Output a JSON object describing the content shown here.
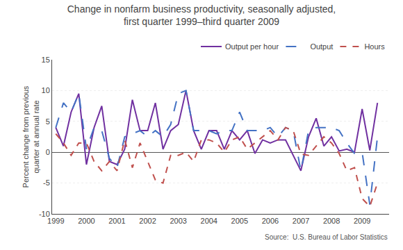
{
  "chart_data": {
    "type": "line",
    "title": "Change in nonfarm business productivity, seasonally adjusted,\nfirst quarter 1999–third quarter 2009",
    "y_label": "Percent change from previous\nquarter at annual rate",
    "annotations": [
      "Source:  U.S. Bureau of Labor Statistics"
    ],
    "x": [
      1999.0,
      1999.25,
      1999.5,
      1999.75,
      2000.0,
      2000.25,
      2000.5,
      2000.75,
      2001.0,
      2001.25,
      2001.5,
      2001.75,
      2002.0,
      2002.25,
      2002.5,
      2002.75,
      2003.0,
      2003.25,
      2003.5,
      2003.75,
      2004.0,
      2004.25,
      2004.5,
      2004.75,
      2005.0,
      2005.25,
      2005.5,
      2005.75,
      2006.0,
      2006.25,
      2006.5,
      2006.75,
      2007.0,
      2007.25,
      2007.5,
      2007.75,
      2008.0,
      2008.25,
      2008.5,
      2008.75,
      2009.0,
      2009.25,
      2009.5
    ],
    "series": [
      {
        "name": "Output per hour",
        "color": "#7030A0",
        "line_style": "solid",
        "values": [
          4.0,
          1.0,
          6.5,
          9.5,
          -2.0,
          4.0,
          7.5,
          -1.5,
          -2.0,
          0.5,
          8.5,
          3.5,
          3.5,
          8.0,
          0.5,
          3.5,
          4.5,
          10.0,
          3.5,
          0.5,
          3.5,
          3.5,
          0.5,
          3.5,
          2.0,
          3.5,
          -0.2,
          2.0,
          1.5,
          2.0,
          2.0,
          -0.5,
          -3.0,
          2.5,
          5.5,
          1.0,
          2.5,
          0.2,
          0.5,
          0.0,
          7.0,
          0.3,
          8.0
        ]
      },
      {
        "name": "Output",
        "color": "#4472C4",
        "line_style": "longdash",
        "values": [
          4.0,
          8.0,
          6.5,
          9.5,
          0.5,
          4.0,
          3.5,
          -1.0,
          -2.5,
          2.5,
          3.0,
          3.5,
          2.5,
          3.5,
          2.5,
          4.5,
          9.5,
          10.0,
          3.5,
          3.5,
          3.5,
          3.0,
          3.5,
          3.5,
          6.5,
          3.5,
          3.5,
          3.5,
          4.0,
          2.5,
          4.0,
          3.5,
          -3.0,
          3.5,
          4.0,
          4.0,
          4.0,
          3.5,
          1.5,
          -0.2,
          0.0,
          -8.5,
          2.5
        ]
      },
      {
        "name": "Hours",
        "color": "#C0504D",
        "line_style": "dash",
        "values": [
          3.0,
          1.5,
          -0.5,
          1.5,
          1.5,
          -1.5,
          -3.0,
          -1.5,
          -3.0,
          2.0,
          -2.5,
          1.5,
          -1.5,
          -4.5,
          -5.0,
          -0.5,
          -0.5,
          0.0,
          -1.5,
          2.0,
          2.0,
          1.5,
          0.0,
          2.0,
          2.5,
          0.5,
          1.5,
          2.5,
          3.5,
          2.0,
          4.0,
          3.5,
          -0.3,
          -0.5,
          1.0,
          2.5,
          1.5,
          -0.2,
          -3.0,
          -2.5,
          -7.5,
          -8.8,
          -5.0
        ]
      }
    ],
    "xlim": [
      1998.88,
      2009.88
    ],
    "ylim": [
      -10,
      15
    ],
    "xticks": [
      1999,
      2000,
      2001,
      2002,
      2003,
      2004,
      2005,
      2006,
      2007,
      2008,
      2009
    ],
    "yticks": [
      -10,
      -5,
      0,
      5,
      10,
      15
    ],
    "grid": true,
    "legend": "upper right"
  }
}
